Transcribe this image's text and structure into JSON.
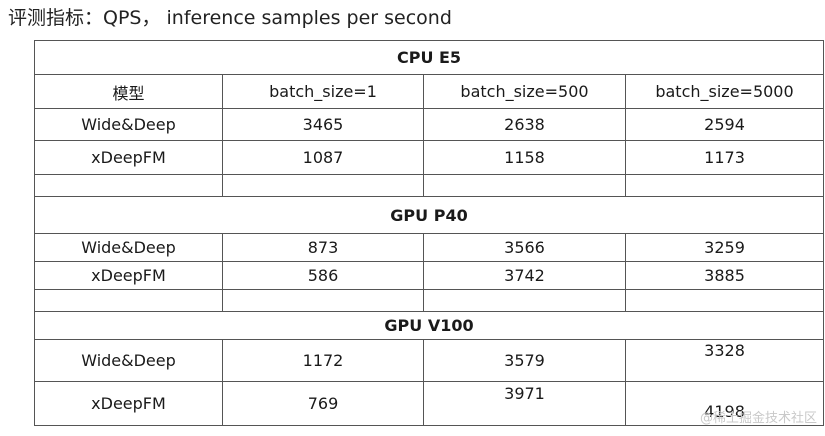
{
  "heading": "评测指标：QPS， inference samples per second",
  "table": {
    "header_model": "模型",
    "header_batch": [
      "batch_size=1",
      "batch_size=500",
      "batch_size=5000"
    ],
    "sections": [
      {
        "title": "CPU E5",
        "rows": [
          {
            "model": "Wide&Deep",
            "values": [
              "3465",
              "2638",
              "2594"
            ]
          },
          {
            "model": "xDeepFM",
            "values": [
              "1087",
              "1158",
              "1173"
            ]
          }
        ]
      },
      {
        "title": "GPU P40",
        "rows": [
          {
            "model": "Wide&Deep",
            "values": [
              "873",
              "3566",
              "3259"
            ]
          },
          {
            "model": "xDeepFM",
            "values": [
              "586",
              "3742",
              "3885"
            ]
          }
        ]
      },
      {
        "title": "GPU V100",
        "rows": [
          {
            "model": "Wide&Deep",
            "values": [
              "1172",
              "3579",
              "3328"
            ]
          },
          {
            "model": "xDeepFM",
            "values": [
              "769",
              "3971",
              "4198"
            ]
          }
        ]
      }
    ]
  },
  "watermark": "@稀土掘金技术社区"
}
